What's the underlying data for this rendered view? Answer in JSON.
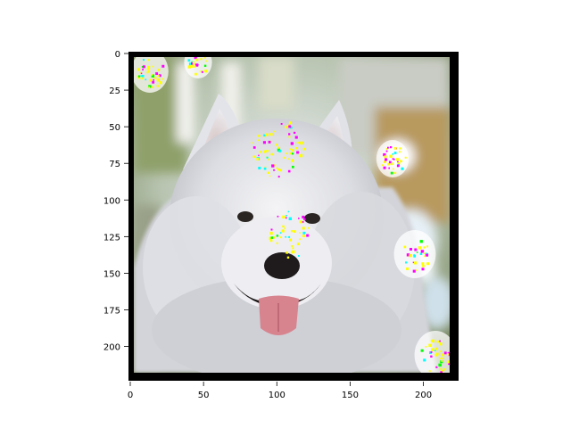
{
  "figure": {
    "image_subject": "white Samoyed dog face with colored saliency speckle overlay",
    "x_ticks": [
      {
        "value": 0,
        "label": "0"
      },
      {
        "value": 50,
        "label": "50"
      },
      {
        "value": 100,
        "label": "100"
      },
      {
        "value": 150,
        "label": "150"
      },
      {
        "value": 200,
        "label": "200"
      }
    ],
    "y_ticks": [
      {
        "value": 0,
        "label": "0"
      },
      {
        "value": 25,
        "label": "25"
      },
      {
        "value": 50,
        "label": "50"
      },
      {
        "value": 75,
        "label": "75"
      },
      {
        "value": 100,
        "label": "100"
      },
      {
        "value": 125,
        "label": "125"
      },
      {
        "value": 150,
        "label": "150"
      },
      {
        "value": 175,
        "label": "175"
      },
      {
        "value": 200,
        "label": "200"
      }
    ],
    "x_range": [
      0,
      224
    ],
    "y_range": [
      0,
      224
    ],
    "overlay_colors": [
      "#ffff00",
      "#ff00ff",
      "#00ffff",
      "#00ff00"
    ],
    "border_color": "#000000"
  }
}
